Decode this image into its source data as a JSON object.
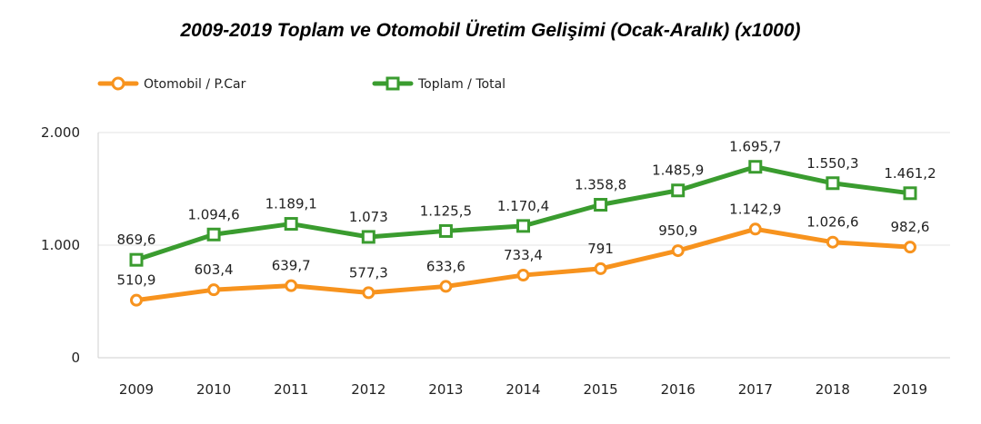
{
  "chart_data": {
    "type": "line",
    "title": "2009-2019 Toplam ve Otomobil Üretim Gelişimi (Ocak-Aralık) (x1000)",
    "categories": [
      "2009",
      "2010",
      "2011",
      "2012",
      "2013",
      "2014",
      "2015",
      "2016",
      "2017",
      "2018",
      "2019"
    ],
    "ylim": [
      0,
      2000
    ],
    "y_ticks": [
      0,
      1000,
      2000
    ],
    "y_tick_labels": [
      "0",
      "1.000",
      "2.000"
    ],
    "grid": "horizontal",
    "legend_position": "top-left",
    "series": [
      {
        "name": "Otomobil / P.Car",
        "color": "#f7931e",
        "marker": "circle",
        "values": [
          510.9,
          603.4,
          639.7,
          577.3,
          633.6,
          733.4,
          791,
          950.9,
          1142.9,
          1026.6,
          982.6
        ],
        "labels": [
          "510,9",
          "603,4",
          "639,7",
          "577,3",
          "633,6",
          "733,4",
          "791",
          "950,9",
          "1.142,9",
          "1.026,6",
          "982,6"
        ]
      },
      {
        "name": "Toplam / Total",
        "color": "#3a9c2f",
        "marker": "square",
        "values": [
          869.6,
          1094.6,
          1189.1,
          1073,
          1125.5,
          1170.4,
          1358.8,
          1485.9,
          1695.7,
          1550.3,
          1461.2
        ],
        "labels": [
          "869,6",
          "1.094,6",
          "1.189,1",
          "1.073",
          "1.125,5",
          "1.170,4",
          "1.358,8",
          "1.485,9",
          "1.695,7",
          "1.550,3",
          "1.461,2"
        ]
      }
    ]
  }
}
